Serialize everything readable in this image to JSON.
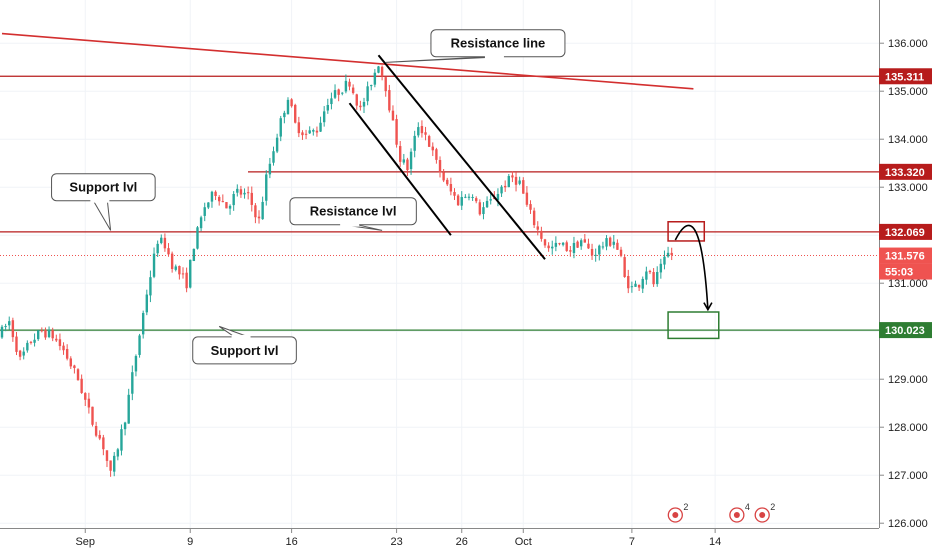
{
  "chart_data": {
    "type": "candlestick",
    "y_range": [
      125.9,
      136.9
    ],
    "y_ticks": [
      126,
      127,
      128,
      129,
      130,
      131,
      132,
      133,
      134,
      135,
      136
    ],
    "y_tick_labels": [
      "126.000",
      "127.000",
      "128.000",
      "129.000",
      "130.000",
      "131.000",
      "132.000",
      "133.000",
      "134.000",
      "135.000",
      "136.000"
    ],
    "x_ticks": [
      {
        "index": 23,
        "label": "Sep"
      },
      {
        "index": 52,
        "label": "9"
      },
      {
        "index": 80,
        "label": "16"
      },
      {
        "index": 109,
        "label": "23"
      },
      {
        "index": 127,
        "label": "26"
      },
      {
        "index": 144,
        "label": "Oct"
      },
      {
        "index": 174,
        "label": "7"
      },
      {
        "index": 197,
        "label": "14"
      }
    ],
    "bar_count": 220,
    "price_path": [
      [
        0,
        129.9
      ],
      [
        3,
        130.2
      ],
      [
        6,
        129.4
      ],
      [
        9,
        129.8
      ],
      [
        12,
        130.0
      ],
      [
        15,
        129.9
      ],
      [
        18,
        129.6
      ],
      [
        22,
        129.0
      ],
      [
        26,
        128.1
      ],
      [
        29,
        127.6
      ],
      [
        31,
        127.0
      ],
      [
        33,
        127.6
      ],
      [
        35,
        128.2
      ],
      [
        38,
        129.5
      ],
      [
        41,
        130.8
      ],
      [
        44,
        131.9
      ],
      [
        46,
        131.8
      ],
      [
        48,
        131.4
      ],
      [
        52,
        131.0
      ],
      [
        54,
        131.8
      ],
      [
        57,
        132.6
      ],
      [
        60,
        132.9
      ],
      [
        63,
        132.6
      ],
      [
        66,
        132.9
      ],
      [
        69,
        132.8
      ],
      [
        72,
        132.3
      ],
      [
        74,
        133.2
      ],
      [
        77,
        134.1
      ],
      [
        80,
        134.9
      ],
      [
        82,
        134.3
      ],
      [
        85,
        134.1
      ],
      [
        88,
        134.2
      ],
      [
        91,
        134.8
      ],
      [
        94,
        135.0
      ],
      [
        97,
        135.2
      ],
      [
        100,
        134.6
      ],
      [
        103,
        135.2
      ],
      [
        105,
        135.6
      ],
      [
        107,
        135.1
      ],
      [
        109,
        134.3
      ],
      [
        111,
        133.6
      ],
      [
        113,
        133.4
      ],
      [
        116,
        134.3
      ],
      [
        118,
        134.1
      ],
      [
        121,
        133.5
      ],
      [
        124,
        133.0
      ],
      [
        127,
        132.7
      ],
      [
        130,
        132.9
      ],
      [
        133,
        132.5
      ],
      [
        136,
        132.7
      ],
      [
        139,
        133.0
      ],
      [
        142,
        133.2
      ],
      [
        144,
        133.1
      ],
      [
        146,
        132.6
      ],
      [
        149,
        132.1
      ],
      [
        152,
        131.7
      ],
      [
        155,
        131.8
      ],
      [
        158,
        131.7
      ],
      [
        161,
        131.9
      ],
      [
        164,
        131.6
      ],
      [
        167,
        131.8
      ],
      [
        170,
        131.9
      ],
      [
        172,
        131.5
      ],
      [
        173,
        131.1
      ],
      [
        175,
        130.9
      ],
      [
        177,
        131.0
      ],
      [
        179,
        131.3
      ],
      [
        181,
        131.0
      ],
      [
        183,
        131.3
      ],
      [
        185,
        131.6
      ]
    ],
    "horizontal_lines": [
      {
        "price": 135.311,
        "label": "135.311",
        "color": "#b71c1c"
      },
      {
        "price": 133.32,
        "label": "133.320",
        "color": "#b71c1c"
      },
      {
        "price": 132.069,
        "label": "132.069",
        "color": "#b71c1c"
      },
      {
        "price": 130.023,
        "label": "130.023",
        "color": "#2e7d32"
      }
    ],
    "current_price": {
      "price": 131.576,
      "label": "131.576",
      "countdown": "55:03",
      "color": "#ef5350"
    },
    "trendlines": [
      {
        "name": "resistance-trendline",
        "from": [
          0,
          136.2
        ],
        "to": [
          191,
          135.05
        ],
        "color": "#d32f2f"
      },
      {
        "name": "channel-upper",
        "from": [
          104,
          135.75
        ],
        "to": [
          150,
          131.5
        ],
        "color": "#000000"
      },
      {
        "name": "channel-lower",
        "from": [
          96,
          134.75
        ],
        "to": [
          124,
          132.0
        ],
        "color": "#000000"
      }
    ],
    "zones": [
      {
        "name": "sell-zone",
        "x": [
          184,
          194
        ],
        "y": [
          131.88,
          132.28
        ],
        "color": "#b71c1c"
      },
      {
        "name": "target-zone",
        "x": [
          184,
          198
        ],
        "y": [
          129.85,
          130.4
        ],
        "color": "#2e7d32"
      }
    ],
    "arrow": {
      "from": [
        186,
        131.9
      ],
      "via": [
        193,
        132.35
      ],
      "to": [
        195,
        130.45
      ]
    },
    "annotations": [
      {
        "text": "Resistance line",
        "anchor": [
          106,
          135.6
        ],
        "box_center": [
          137,
          136.0
        ]
      },
      {
        "text": "Support lvl",
        "anchor": [
          30,
          132.1
        ],
        "box_center": [
          28,
          133.0
        ]
      },
      {
        "text": "Resistance lvl",
        "anchor": [
          105,
          132.1
        ],
        "box_center": [
          97,
          132.5
        ]
      },
      {
        "text": "Support lvl",
        "anchor": [
          60,
          130.1
        ],
        "box_center": [
          67,
          129.6
        ]
      }
    ],
    "event_markers": [
      {
        "index": 186,
        "label": "2"
      },
      {
        "index": 203,
        "label": "4"
      },
      {
        "index": 210,
        "label": "2"
      }
    ]
  }
}
